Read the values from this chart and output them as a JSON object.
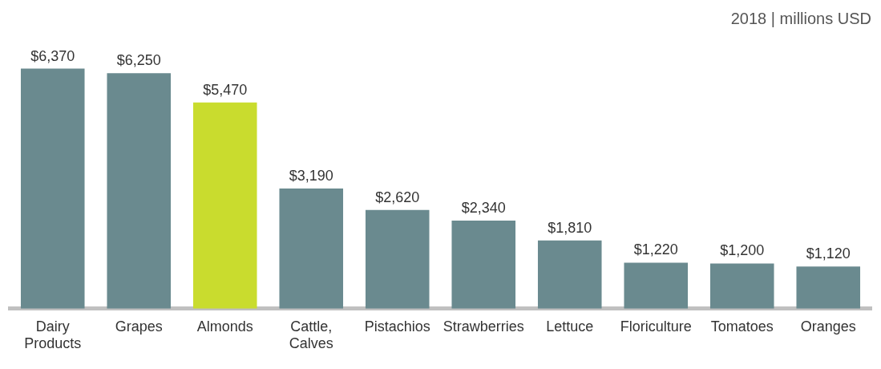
{
  "chart_data": {
    "type": "bar",
    "subtitle": "2018 | millions USD",
    "categories": [
      "Dairy Products",
      "Grapes",
      "Almonds",
      "Cattle, Calves",
      "Pistachios",
      "Strawberries",
      "Lettuce",
      "Floriculture",
      "Tomatoes",
      "Oranges"
    ],
    "values": [
      6370,
      6250,
      5470,
      3190,
      2620,
      2340,
      1810,
      1220,
      1200,
      1120
    ],
    "value_labels": [
      "$6,370",
      "$6,250",
      "$5,470",
      "$3,190",
      "$2,620",
      "$2,340",
      "$1,810",
      "$1,220",
      "$1,200",
      "$1,120"
    ],
    "colors": [
      "#6a8a8f",
      "#6a8a8f",
      "#c9dc2e",
      "#6a8a8f",
      "#6a8a8f",
      "#6a8a8f",
      "#6a8a8f",
      "#6a8a8f",
      "#6a8a8f",
      "#6a8a8f"
    ],
    "grid": false,
    "legend": false
  }
}
